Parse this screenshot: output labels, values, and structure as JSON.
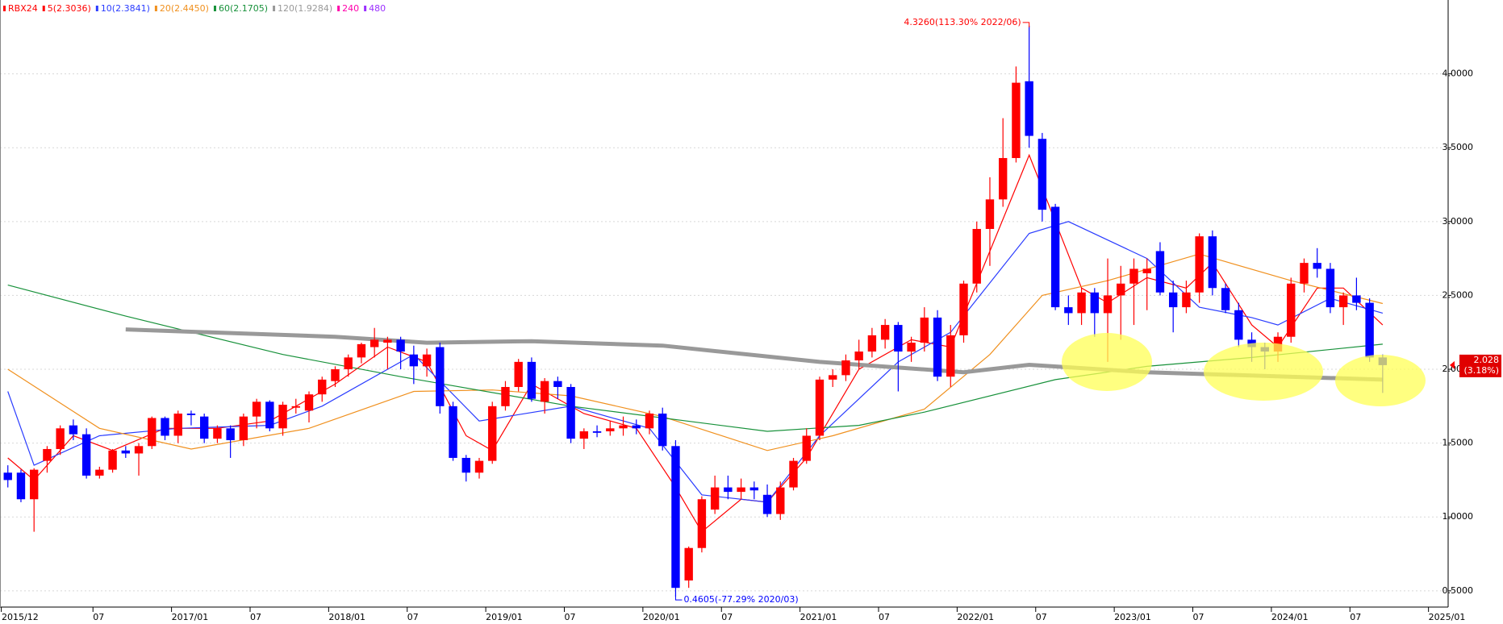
{
  "chart_data": {
    "type": "candlestick",
    "symbol": "RBX24",
    "symbol_color": "#ff0000",
    "up_color": "#ff0000",
    "down_color": "#0000ff",
    "ylim": [
      0.39,
      4.5
    ],
    "yticks": [
      {
        "value": 0.5,
        "label": "0.5000"
      },
      {
        "value": 1.0,
        "label": "1.0000"
      },
      {
        "value": 1.5,
        "label": "1.5000"
      },
      {
        "value": 2.0,
        "label": "2.0000"
      },
      {
        "value": 2.5,
        "label": "2.5000"
      },
      {
        "value": 3.0,
        "label": "3.0000"
      },
      {
        "value": 3.5,
        "label": "3.5000"
      },
      {
        "value": 4.0,
        "label": "4.0000"
      }
    ],
    "grid": true,
    "xlim": [
      -0.6,
      110
    ],
    "xticks": [
      {
        "value": 0,
        "label": "2015/12"
      },
      {
        "value": 7,
        "label": "07"
      },
      {
        "value": 13,
        "label": "2017/01"
      },
      {
        "value": 19,
        "label": "07"
      },
      {
        "value": 25,
        "label": "2018/01"
      },
      {
        "value": 31,
        "label": "07"
      },
      {
        "value": 37,
        "label": "2019/01"
      },
      {
        "value": 43,
        "label": "07"
      },
      {
        "value": 49,
        "label": "2020/01"
      },
      {
        "value": 55,
        "label": "07"
      },
      {
        "value": 61,
        "label": "2021/01"
      },
      {
        "value": 67,
        "label": "07"
      },
      {
        "value": 73,
        "label": "2022/01"
      },
      {
        "value": 79,
        "label": "07"
      },
      {
        "value": 85,
        "label": "2023/01"
      },
      {
        "value": 91,
        "label": "07"
      },
      {
        "value": 97,
        "label": "2024/01"
      },
      {
        "value": 103,
        "label": "07"
      },
      {
        "value": 109,
        "label": "2025/01"
      }
    ],
    "ohlc": [
      [
        1.3,
        1.35,
        1.2,
        1.25
      ],
      [
        1.3,
        1.32,
        1.1,
        1.12
      ],
      [
        1.12,
        1.33,
        0.9,
        1.32
      ],
      [
        1.38,
        1.48,
        1.3,
        1.46
      ],
      [
        1.46,
        1.62,
        1.42,
        1.6
      ],
      [
        1.62,
        1.66,
        1.52,
        1.56
      ],
      [
        1.56,
        1.6,
        1.26,
        1.28
      ],
      [
        1.28,
        1.34,
        1.26,
        1.32
      ],
      [
        1.32,
        1.46,
        1.3,
        1.45
      ],
      [
        1.45,
        1.48,
        1.4,
        1.43
      ],
      [
        1.43,
        1.5,
        1.28,
        1.48
      ],
      [
        1.48,
        1.68,
        1.46,
        1.67
      ],
      [
        1.67,
        1.68,
        1.52,
        1.55
      ],
      [
        1.55,
        1.72,
        1.5,
        1.7
      ],
      [
        1.7,
        1.72,
        1.62,
        1.69
      ],
      [
        1.68,
        1.7,
        1.5,
        1.53
      ],
      [
        1.53,
        1.62,
        1.5,
        1.6
      ],
      [
        1.6,
        1.62,
        1.4,
        1.52
      ],
      [
        1.52,
        1.7,
        1.48,
        1.68
      ],
      [
        1.68,
        1.8,
        1.6,
        1.78
      ],
      [
        1.78,
        1.79,
        1.58,
        1.6
      ],
      [
        1.6,
        1.78,
        1.55,
        1.76
      ],
      [
        1.74,
        1.8,
        1.7,
        1.75
      ],
      [
        1.72,
        1.85,
        1.64,
        1.83
      ],
      [
        1.83,
        1.95,
        1.78,
        1.93
      ],
      [
        1.92,
        2.02,
        1.88,
        2.0
      ],
      [
        2.0,
        2.1,
        1.95,
        2.08
      ],
      [
        2.08,
        2.18,
        2.04,
        2.17
      ],
      [
        2.15,
        2.28,
        2.08,
        2.2
      ],
      [
        2.18,
        2.22,
        2.0,
        2.2
      ],
      [
        2.2,
        2.22,
        2.0,
        2.12
      ],
      [
        2.1,
        2.16,
        1.9,
        2.02
      ],
      [
        2.02,
        2.14,
        1.95,
        2.1
      ],
      [
        2.15,
        2.18,
        1.7,
        1.75
      ],
      [
        1.75,
        1.78,
        1.38,
        1.4
      ],
      [
        1.4,
        1.42,
        1.24,
        1.3
      ],
      [
        1.3,
        1.4,
        1.26,
        1.38
      ],
      [
        1.38,
        1.78,
        1.36,
        1.75
      ],
      [
        1.75,
        1.92,
        1.72,
        1.88
      ],
      [
        1.88,
        2.07,
        1.85,
        2.05
      ],
      [
        2.05,
        2.08,
        1.78,
        1.8
      ],
      [
        1.78,
        1.94,
        1.7,
        1.92
      ],
      [
        1.92,
        1.95,
        1.8,
        1.88
      ],
      [
        1.88,
        1.9,
        1.5,
        1.53
      ],
      [
        1.53,
        1.6,
        1.46,
        1.58
      ],
      [
        1.58,
        1.62,
        1.54,
        1.57
      ],
      [
        1.58,
        1.65,
        1.55,
        1.6
      ],
      [
        1.6,
        1.68,
        1.55,
        1.62
      ],
      [
        1.62,
        1.66,
        1.56,
        1.6
      ],
      [
        1.6,
        1.72,
        1.56,
        1.7
      ],
      [
        1.7,
        1.74,
        1.45,
        1.48
      ],
      [
        1.48,
        1.52,
        0.4605,
        0.52
      ],
      [
        0.57,
        0.8,
        0.52,
        0.79
      ],
      [
        0.79,
        1.14,
        0.76,
        1.12
      ],
      [
        1.05,
        1.28,
        1.02,
        1.2
      ],
      [
        1.2,
        1.28,
        1.12,
        1.17
      ],
      [
        1.17,
        1.26,
        1.12,
        1.2
      ],
      [
        1.2,
        1.24,
        1.12,
        1.18
      ],
      [
        1.15,
        1.22,
        1.0,
        1.02
      ],
      [
        1.02,
        1.24,
        0.98,
        1.2
      ],
      [
        1.2,
        1.4,
        1.18,
        1.38
      ],
      [
        1.38,
        1.6,
        1.36,
        1.55
      ],
      [
        1.55,
        1.95,
        1.52,
        1.93
      ],
      [
        1.93,
        2.0,
        1.88,
        1.96
      ],
      [
        1.96,
        2.1,
        1.92,
        2.06
      ],
      [
        2.06,
        2.2,
        2.0,
        2.12
      ],
      [
        2.12,
        2.28,
        2.08,
        2.23
      ],
      [
        2.2,
        2.34,
        2.14,
        2.3
      ],
      [
        2.3,
        2.32,
        1.85,
        2.12
      ],
      [
        2.12,
        2.22,
        2.05,
        2.18
      ],
      [
        2.18,
        2.42,
        2.12,
        2.35
      ],
      [
        2.35,
        2.4,
        1.92,
        1.95
      ],
      [
        1.95,
        2.3,
        1.88,
        2.23
      ],
      [
        2.23,
        2.6,
        2.18,
        2.58
      ],
      [
        2.58,
        3.0,
        2.52,
        2.95
      ],
      [
        2.95,
        3.3,
        2.7,
        3.15
      ],
      [
        3.15,
        3.7,
        3.1,
        3.43
      ],
      [
        3.43,
        4.05,
        3.4,
        3.94
      ],
      [
        3.95,
        4.326,
        3.5,
        3.58
      ],
      [
        3.56,
        3.6,
        3.0,
        3.08
      ],
      [
        3.1,
        3.12,
        2.4,
        2.42
      ],
      [
        2.42,
        2.5,
        2.3,
        2.38
      ],
      [
        2.38,
        2.55,
        2.3,
        2.52
      ],
      [
        2.52,
        2.55,
        2.22,
        2.38
      ],
      [
        2.38,
        2.75,
        2.05,
        2.5
      ],
      [
        2.5,
        2.7,
        2.2,
        2.58
      ],
      [
        2.58,
        2.75,
        2.3,
        2.68
      ],
      [
        2.65,
        2.75,
        2.4,
        2.68
      ],
      [
        2.8,
        2.86,
        2.5,
        2.52
      ],
      [
        2.52,
        2.6,
        2.25,
        2.42
      ],
      [
        2.42,
        2.6,
        2.38,
        2.52
      ],
      [
        2.52,
        2.92,
        2.45,
        2.9
      ],
      [
        2.9,
        2.94,
        2.5,
        2.55
      ],
      [
        2.55,
        2.58,
        2.38,
        2.4
      ],
      [
        2.4,
        2.45,
        2.15,
        2.2
      ],
      [
        2.2,
        2.25,
        2.05,
        2.15
      ],
      [
        2.15,
        2.18,
        2.0,
        2.12
      ],
      [
        2.12,
        2.25,
        2.05,
        2.22
      ],
      [
        2.22,
        2.62,
        2.18,
        2.58
      ],
      [
        2.58,
        2.75,
        2.52,
        2.72
      ],
      [
        2.72,
        2.82,
        2.62,
        2.68
      ],
      [
        2.68,
        2.72,
        2.38,
        2.42
      ],
      [
        2.42,
        2.52,
        2.3,
        2.5
      ],
      [
        2.5,
        2.62,
        2.4,
        2.45
      ],
      [
        2.45,
        2.48,
        2.05,
        2.08
      ],
      [
        2.08,
        2.1,
        1.84,
        2.028
      ]
    ],
    "series": [
      {
        "name": "5(2.3036)",
        "color": "#ff0000",
        "x": [
          0,
          2,
          5,
          8,
          12,
          16,
          20,
          25,
          29,
          32,
          35,
          37,
          40,
          44,
          48,
          51,
          53,
          56,
          58,
          61,
          65,
          69,
          72,
          75,
          78,
          80,
          82,
          84,
          87,
          90,
          92,
          95,
          97,
          100,
          102,
          105
        ],
        "values": [
          1.4,
          1.25,
          1.55,
          1.45,
          1.6,
          1.6,
          1.65,
          1.9,
          2.15,
          2.05,
          1.55,
          1.45,
          1.9,
          1.7,
          1.6,
          1.2,
          0.9,
          1.12,
          1.1,
          1.4,
          2.0,
          2.2,
          2.15,
          2.8,
          3.45,
          3.0,
          2.55,
          2.45,
          2.62,
          2.55,
          2.72,
          2.3,
          2.15,
          2.55,
          2.55,
          2.3
        ]
      },
      {
        "name": "10(2.3841)",
        "color": "#2a3cff",
        "x": [
          0,
          2,
          7,
          13,
          20,
          24,
          31,
          36,
          43,
          49,
          53,
          58,
          62,
          68,
          72,
          78,
          81,
          87,
          91,
          95,
          97,
          101,
          105
        ],
        "values": [
          1.85,
          1.35,
          1.55,
          1.6,
          1.62,
          1.75,
          2.1,
          1.65,
          1.75,
          1.6,
          1.15,
          1.1,
          1.55,
          2.05,
          2.25,
          2.92,
          3.0,
          2.75,
          2.42,
          2.35,
          2.3,
          2.48,
          2.38
        ]
      },
      {
        "name": "20(2.4450)",
        "color": "#f0901e",
        "x": [
          0,
          7,
          14,
          23,
          31,
          37,
          43,
          50,
          58,
          63,
          70,
          75,
          79,
          84,
          91,
          98,
          105
        ],
        "values": [
          2.0,
          1.6,
          1.46,
          1.6,
          1.85,
          1.86,
          1.82,
          1.68,
          1.45,
          1.55,
          1.73,
          2.1,
          2.5,
          2.6,
          2.78,
          2.6,
          2.445
        ]
      },
      {
        "name": "60(2.1705)",
        "color": "#17913a",
        "x": [
          0,
          9,
          21,
          30,
          43,
          58,
          65,
          70,
          80,
          87,
          95,
          105
        ],
        "values": [
          2.57,
          2.36,
          2.1,
          1.95,
          1.75,
          1.58,
          1.62,
          1.71,
          1.93,
          2.02,
          2.08,
          2.17
        ]
      },
      {
        "name": "120(1.9284)",
        "color": "#999999",
        "x": [
          9,
          25,
          32,
          40,
          50,
          62,
          73,
          78,
          87,
          105
        ],
        "values": [
          2.27,
          2.22,
          2.18,
          2.19,
          2.16,
          2.05,
          1.98,
          2.03,
          1.98,
          1.93
        ]
      }
    ],
    "extra_legend": [
      {
        "name": "240",
        "color": "#ff00aa"
      },
      {
        "name": "480",
        "color": "#9b30ff"
      }
    ],
    "annotations": [
      "4.3260(113.30% 2022/06)",
      "0.4605(-77.29% 2020/03)"
    ],
    "last_change": "(3.18%)"
  }
}
